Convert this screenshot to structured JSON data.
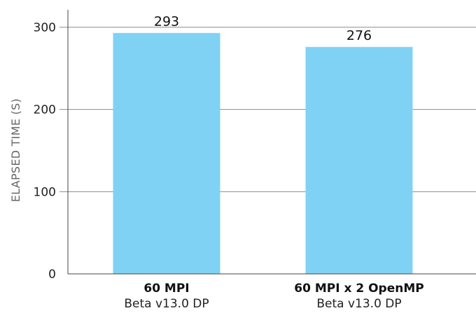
{
  "chart_data": {
    "type": "bar",
    "categories": [
      "60 MPI",
      "60 MPI x 2 OpenMP"
    ],
    "category_sublabels": [
      "Beta v13.0 DP",
      "Beta v13.0 DP"
    ],
    "values": [
      293,
      276
    ],
    "data_labels": [
      "293",
      "276"
    ],
    "title": "",
    "xlabel": "",
    "ylabel": "ELAPSED TIME (S)",
    "ylim": [
      0,
      300
    ],
    "yticks": [
      0,
      100,
      200,
      300
    ],
    "ytick_labels": [
      "0",
      "100",
      "200",
      "300"
    ],
    "grid": true,
    "legend": "none",
    "colors": {
      "bar": "#80d2f4",
      "grid": "#8a8a8a",
      "axis": "#444444"
    }
  }
}
